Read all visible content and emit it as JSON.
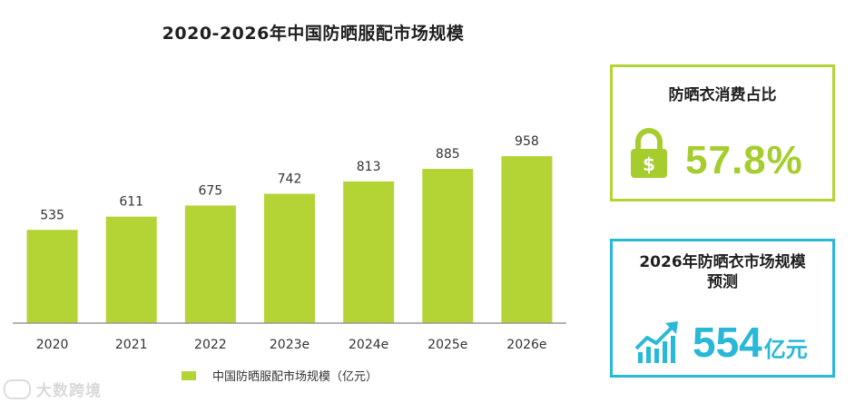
{
  "title": "2020-2026年中国防晒服配市场规模",
  "legend_label": "中国防晒服配市场规模（亿元）",
  "watermark": "大数跨境",
  "colors": {
    "bar": "#b4d335",
    "share_accent": "#a6cd2e",
    "forecast_accent": "#29b8d7"
  },
  "chart_data": {
    "type": "bar",
    "title": "2020-2026年中国防晒服配市场规模",
    "categories": [
      "2020",
      "2021",
      "2022",
      "2023e",
      "2024e",
      "2025e",
      "2026e"
    ],
    "series": [
      {
        "name": "中国防晒服配市场规模（亿元）",
        "values": [
          535,
          611,
          675,
          742,
          813,
          885,
          958
        ]
      }
    ],
    "ylim": [
      0,
      1000
    ],
    "grid": false,
    "legend": "bottom"
  },
  "share_card": {
    "title": "防晒衣消费占比",
    "value": "57.8%",
    "icon": "lock-dollar-icon"
  },
  "forecast_card": {
    "title_line1": "2026年防晒衣市场规模",
    "title_line2": "预测",
    "value": "554",
    "unit": "亿元",
    "icon": "growth-chart-icon"
  }
}
